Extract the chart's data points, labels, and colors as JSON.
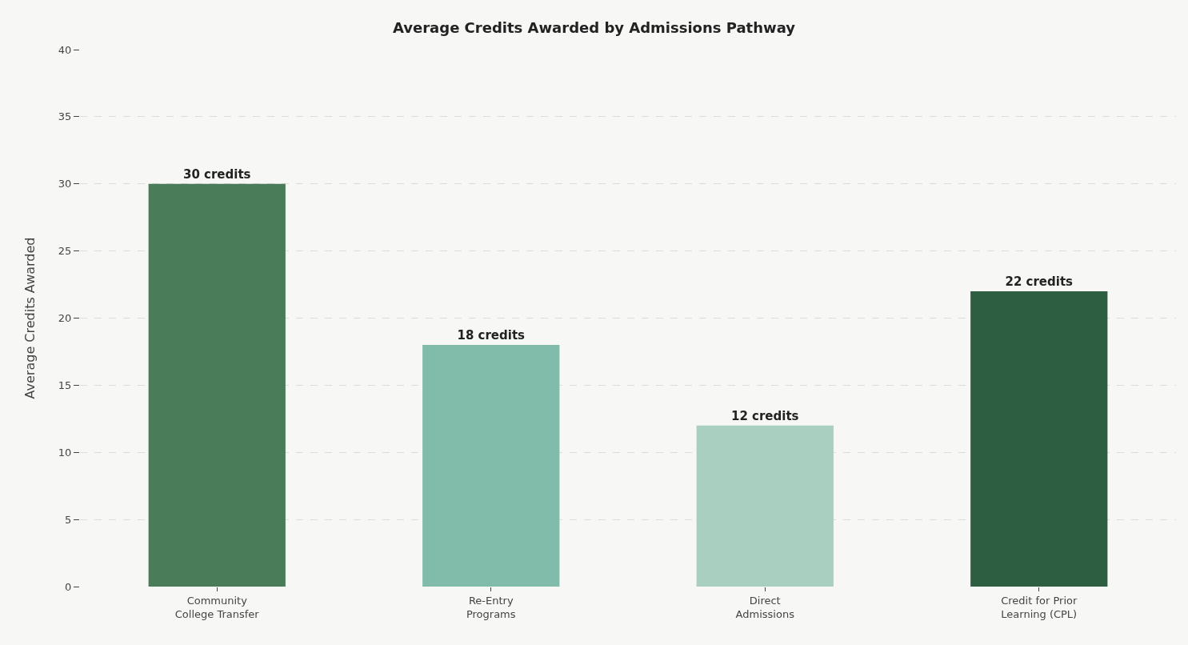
{
  "chart_data": {
    "type": "bar",
    "title": "Average Credits Awarded by Admissions Pathway",
    "ylabel": "Average Credits Awarded",
    "categories": [
      "Community\nCollege Transfer",
      "Re-Entry\nPrograms",
      "Direct\nAdmissions",
      "Credit for Prior\nLearning (CPL)"
    ],
    "values": [
      30,
      18,
      12,
      22
    ],
    "colors": [
      "#4a7c59",
      "#81bba9",
      "#a8cfc0",
      "#2e5e42"
    ],
    "value_labels": [
      "30 credits",
      "18 credits",
      "12 credits",
      "22 credits"
    ],
    "ylim": [
      0,
      40
    ],
    "yticks": [
      0,
      5,
      10,
      15,
      20,
      25,
      30,
      35,
      40
    ],
    "grid": "y"
  }
}
